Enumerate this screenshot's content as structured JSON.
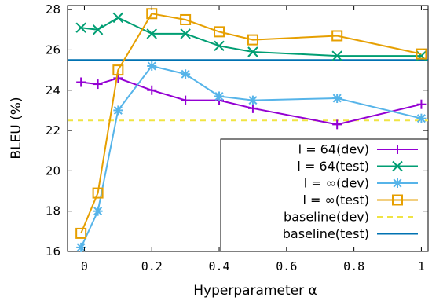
{
  "chart_data": {
    "type": "line",
    "xlabel": "Hyperparameter α",
    "ylabel": "BLEU (%)",
    "xlim": [
      -0.05,
      1.02
    ],
    "ylim": [
      16,
      28.2
    ],
    "xticks": [
      0,
      0.2,
      0.4,
      0.6,
      0.8,
      1
    ],
    "xtick_labels": [
      "0",
      "0.2",
      "0.4",
      "0.6",
      "0.8",
      "1"
    ],
    "yticks": [
      16,
      18,
      20,
      22,
      24,
      26,
      28
    ],
    "ytick_labels": [
      "16",
      "18",
      "20",
      "22",
      "24",
      "26",
      "28"
    ],
    "legend_position": "bottom-right",
    "series": [
      {
        "name": "l = 64(dev)",
        "color": "#9400d3",
        "marker": "plus",
        "style": "solid",
        "x": [
          -0.01,
          0.04,
          0.1,
          0.2,
          0.3,
          0.4,
          0.5,
          0.75,
          1.0
        ],
        "y": [
          24.4,
          24.3,
          24.6,
          24.0,
          23.5,
          23.5,
          23.1,
          22.3,
          23.3
        ]
      },
      {
        "name": "l = 64(test)",
        "color": "#009e73",
        "marker": "cross",
        "style": "solid",
        "x": [
          -0.01,
          0.04,
          0.1,
          0.2,
          0.3,
          0.4,
          0.5,
          0.75,
          1.0
        ],
        "y": [
          27.1,
          27.0,
          27.6,
          26.8,
          26.8,
          26.2,
          25.9,
          25.7,
          25.7
        ]
      },
      {
        "name": "l = ∞(dev)",
        "color": "#56b4e9",
        "marker": "star",
        "style": "solid",
        "x": [
          -0.01,
          0.04,
          0.1,
          0.2,
          0.3,
          0.4,
          0.5,
          0.75,
          1.0
        ],
        "y": [
          16.2,
          18.0,
          23.0,
          25.2,
          24.8,
          23.7,
          23.5,
          23.6,
          22.6
        ]
      },
      {
        "name": "l = ∞(test)",
        "color": "#e69f00",
        "marker": "square",
        "style": "solid",
        "x": [
          -0.01,
          0.04,
          0.1,
          0.2,
          0.3,
          0.4,
          0.5,
          0.75,
          1.0
        ],
        "y": [
          16.9,
          18.9,
          25.0,
          27.8,
          27.5,
          26.9,
          26.5,
          26.7,
          25.8
        ]
      },
      {
        "name": "baseline(dev)",
        "color": "#f0e442",
        "marker": "none",
        "style": "dashed",
        "x": [
          -0.05,
          1.02
        ],
        "y": [
          22.5,
          22.5
        ]
      },
      {
        "name": "baseline(test)",
        "color": "#0072b2",
        "marker": "none",
        "style": "solid",
        "x": [
          -0.05,
          1.02
        ],
        "y": [
          25.5,
          25.5
        ]
      }
    ]
  }
}
